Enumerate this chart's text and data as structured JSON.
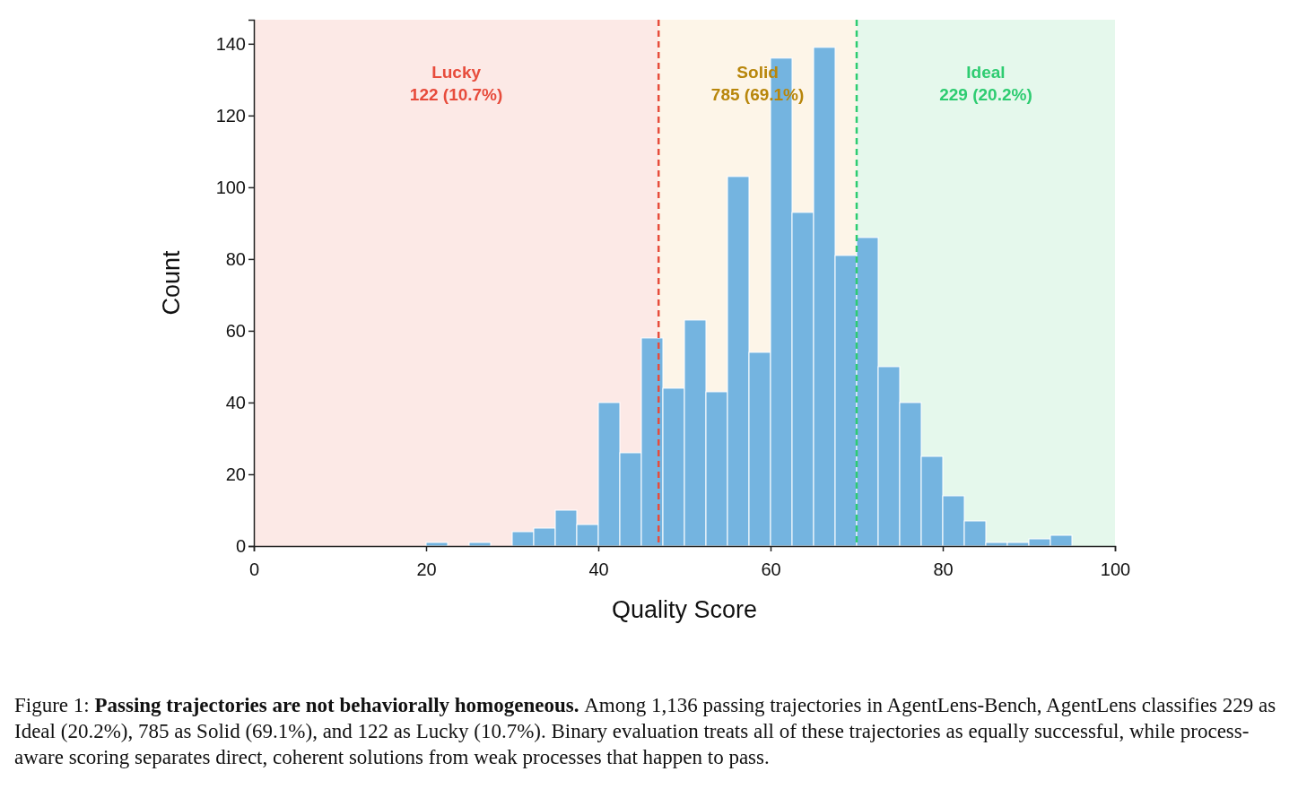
{
  "chart_data": {
    "type": "histogram",
    "xlabel": "Quality Score",
    "ylabel": "Count",
    "bins": [
      0,
      2.5,
      5,
      7.5,
      10,
      12.5,
      15,
      17.5,
      20,
      22.5,
      25,
      27.5,
      30,
      32.5,
      35,
      37.5,
      40,
      42.5,
      45,
      47.5,
      50,
      52.5,
      55,
      57.5,
      60,
      62.5,
      65,
      67.5,
      70,
      72.5,
      75,
      77.5,
      80,
      82.5,
      85,
      87.5,
      90,
      92.5,
      95,
      97.5,
      100
    ],
    "values": [
      0,
      0,
      0,
      0,
      0,
      0,
      0,
      0,
      1,
      0,
      1,
      0,
      4,
      5,
      10,
      6,
      40,
      26,
      58,
      44,
      63,
      43,
      103,
      54,
      136,
      93,
      139,
      81,
      86,
      50,
      40,
      25,
      14,
      7,
      1,
      1,
      2,
      3,
      0,
      0
    ],
    "color": "#74b4e0",
    "xlim": [
      0,
      100
    ],
    "xticks": [
      0,
      20,
      40,
      60,
      80,
      100
    ],
    "ylim": [
      0,
      146.7
    ],
    "yticks": [
      0,
      20,
      40,
      60,
      80,
      100,
      120,
      140
    ],
    "grid": false,
    "bands": [
      {
        "axis": "x",
        "from": 0,
        "to": 47,
        "label": "Lucky",
        "color": "#fce9e6"
      },
      {
        "axis": "x",
        "from": 47,
        "to": 70,
        "label": "Solid",
        "color": "#fdf5e8"
      },
      {
        "axis": "x",
        "from": 70,
        "to": 100,
        "label": "Ideal",
        "color": "#e5f8ec"
      }
    ],
    "ref_lines": [
      {
        "axis": "x",
        "value": 47,
        "color": "#e74c3c",
        "line_style": "dashed"
      },
      {
        "axis": "x",
        "value": 70,
        "color": "#2ecc71",
        "line_style": "dashed"
      }
    ],
    "annotations": [
      "Figure 1:",
      "Passing trajectories are not behaviorally homogeneous.",
      "Among 1,136 passing trajectories in AgentLens-Bench, AgentLens classifies 229 as Ideal (20.2%), 785 as Solid (69.1%), and 122 as Lucky (10.7%). Binary evaluation treats all of these trajectories as equally successful, while process-aware scoring separates direct, coherent solutions from weak processes that happen to pass.",
      "122 (10.7%)",
      "785 (69.1%)",
      "229 (20.2%)"
    ]
  }
}
